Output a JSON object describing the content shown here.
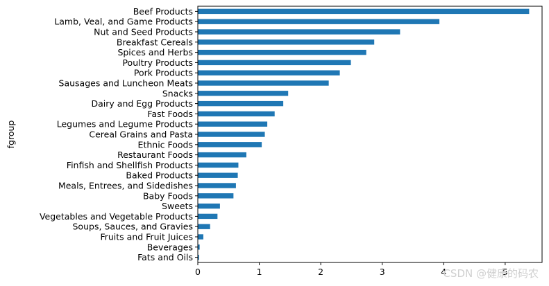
{
  "chart_data": {
    "type": "bar",
    "orientation": "horizontal",
    "ylabel": "fgroup",
    "xlabel": "",
    "xlim": [
      0,
      5.6
    ],
    "xticks": [
      0,
      1,
      2,
      3,
      4,
      5
    ],
    "bar_color": "#1f77b4",
    "categories": [
      "Beef Products",
      "Lamb, Veal, and Game Products",
      "Nut and Seed Products",
      "Breakfast Cereals",
      "Spices and Herbs",
      "Poultry Products",
      "Pork Products",
      "Sausages and Luncheon Meats",
      "Snacks",
      "Dairy and Egg Products",
      "Fast Foods",
      "Legumes and Legume Products",
      "Cereal Grains and Pasta",
      "Ethnic Foods",
      "Restaurant Foods",
      "Finfish and Shellfish Products",
      "Baked Products",
      "Meals, Entrees, and Sidedishes",
      "Baby Foods",
      "Sweets",
      "Vegetables and Vegetable Products",
      "Soups, Sauces, and Gravies",
      "Fruits and Fruit Juices",
      "Beverages",
      "Fats and Oils"
    ],
    "values": [
      5.39,
      3.93,
      3.29,
      2.87,
      2.74,
      2.49,
      2.31,
      2.13,
      1.47,
      1.39,
      1.25,
      1.13,
      1.09,
      1.04,
      0.79,
      0.66,
      0.65,
      0.62,
      0.58,
      0.36,
      0.32,
      0.2,
      0.09,
      0.03,
      0.02
    ]
  },
  "watermark": "CSDN @健康的码农"
}
